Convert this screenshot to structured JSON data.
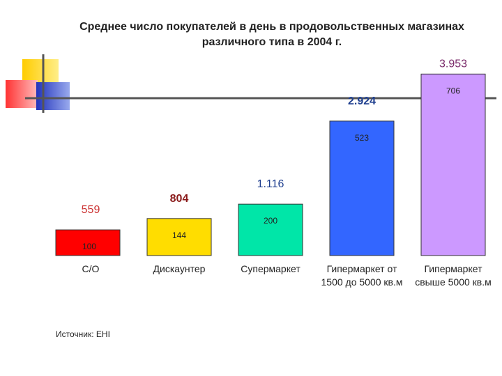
{
  "chart_data": {
    "type": "bar",
    "title": "Среднее число покупателей в день в продовольственных магазинах различного типа в 2004 г.",
    "categories": [
      [
        "С/О"
      ],
      [
        "Дискаунтер"
      ],
      [
        "Супермаркет"
      ],
      [
        "Гипермаркет от",
        "1500 до 5000 кв.м"
      ],
      [
        "Гипермаркет",
        "свыше 5000 кв.м"
      ]
    ],
    "values": [
      100,
      144,
      200,
      523,
      706
    ],
    "top_labels": [
      "559",
      "804",
      "1.116",
      "2.924",
      "3.953"
    ],
    "top_label_colors": [
      "#cc3333",
      "#8a1a1a",
      "#1f3f8f",
      "#1f3f8f",
      "#7a2a6a"
    ],
    "bar_colors": [
      "#ff0000",
      "#ffdd00",
      "#00e6a8",
      "#3366ff",
      "#cc99ff"
    ],
    "ylim": [
      0,
      780
    ],
    "grid": false,
    "legend": "none"
  },
  "source": "Источник: EHI",
  "colors": {
    "deco_yellow": "#ffdd33",
    "deco_red": "#ff4444",
    "deco_blue": "#3344cc",
    "deco_line": "#555555"
  }
}
